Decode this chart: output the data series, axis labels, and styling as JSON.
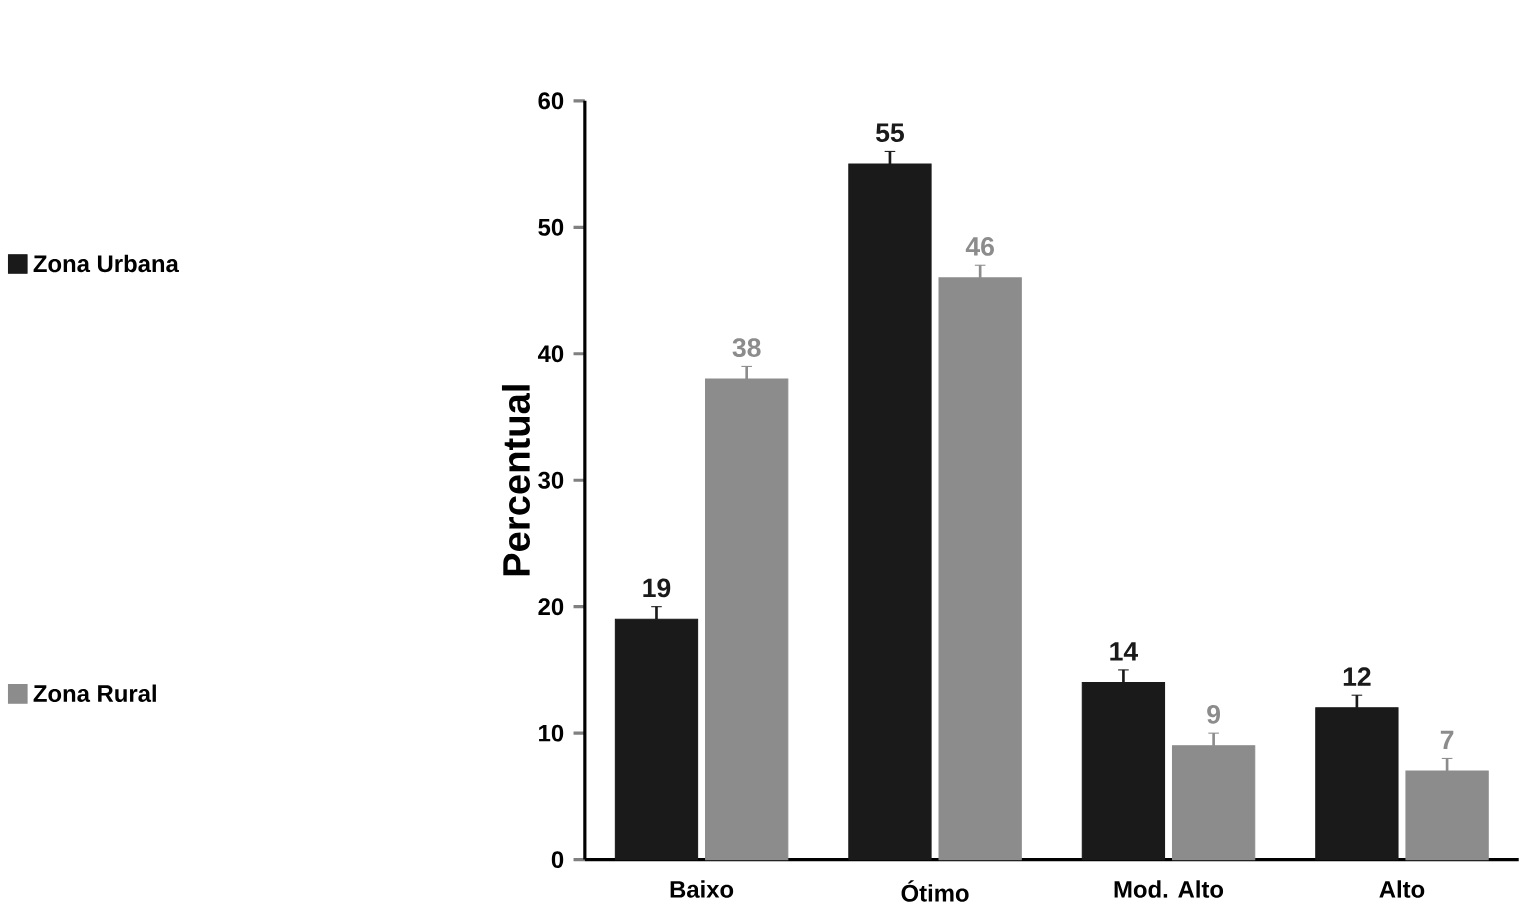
{
  "chart_data": {
    "type": "bar",
    "ylabel": "Percentual",
    "categories": [
      "Baixo",
      "Ótimo",
      "Mod. Alto",
      "Alto"
    ],
    "series": [
      {
        "name": "Zona Urbana",
        "color": "#1a1a1a",
        "values": [
          19,
          55,
          14,
          12
        ],
        "errors": [
          1,
          1,
          1,
          1
        ]
      },
      {
        "name": "Zona Rural",
        "color": "#8c8c8c",
        "values": [
          38,
          46,
          9,
          7
        ],
        "errors": [
          1,
          1,
          1,
          1
        ]
      }
    ],
    "ylim": [
      0,
      60
    ],
    "yticks": [
      0,
      10,
      20,
      30,
      40,
      50,
      60
    ],
    "data_labels": true,
    "legend": "left"
  }
}
